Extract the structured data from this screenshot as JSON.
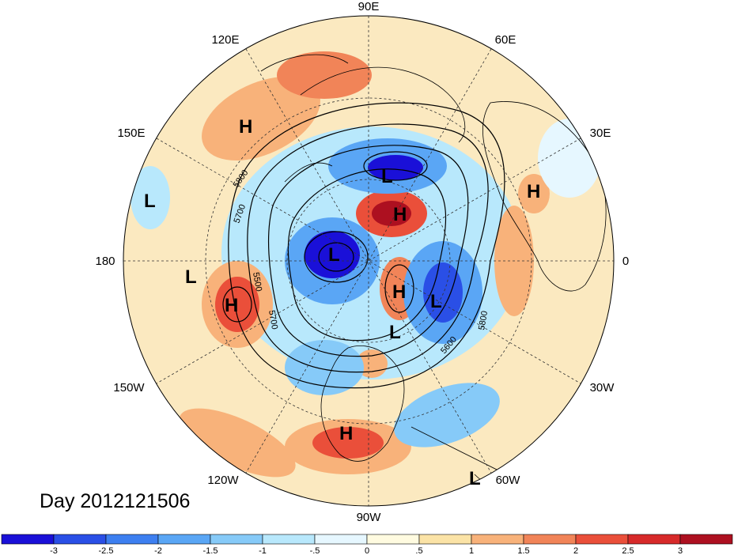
{
  "title": "Day 2012121506",
  "colors": {
    "land_outline": "#000000",
    "graticule": "#333333",
    "background": "#ffffff"
  },
  "longitude_labels": [
    {
      "text": "90E",
      "name": "lon-label-90e"
    },
    {
      "text": "60E",
      "name": "lon-label-60e"
    },
    {
      "text": "30E",
      "name": "lon-label-30e"
    },
    {
      "text": "0",
      "name": "lon-label-0"
    },
    {
      "text": "30W",
      "name": "lon-label-30w"
    },
    {
      "text": "60W",
      "name": "lon-label-60w"
    },
    {
      "text": "90W",
      "name": "lon-label-90w"
    },
    {
      "text": "120W",
      "name": "lon-label-120w"
    },
    {
      "text": "150W",
      "name": "lon-label-150w"
    },
    {
      "text": "180",
      "name": "lon-label-180"
    },
    {
      "text": "150E",
      "name": "lon-label-150e"
    },
    {
      "text": "120E",
      "name": "lon-label-120e"
    }
  ],
  "contour_labels": [
    "5800",
    "5700",
    "5500",
    "5700",
    "5800",
    "5600"
  ],
  "centers": [
    {
      "type": "H",
      "name": "high-center-east-asia"
    },
    {
      "type": "L",
      "name": "low-center-north-pacific"
    },
    {
      "type": "L",
      "name": "low-center-dateline"
    },
    {
      "type": "H",
      "name": "high-center-gulf-of-alaska"
    },
    {
      "type": "L",
      "name": "low-center-siberia"
    },
    {
      "type": "H",
      "name": "high-center-arctic"
    },
    {
      "type": "L",
      "name": "low-center-arctic-canada"
    },
    {
      "type": "H",
      "name": "high-center-greenland-west"
    },
    {
      "type": "L",
      "name": "low-center-north-atlantic"
    },
    {
      "type": "L",
      "name": "low-center-hudson"
    },
    {
      "type": "H",
      "name": "high-center-europe"
    },
    {
      "type": "H",
      "name": "high-center-mexico"
    },
    {
      "type": "L",
      "name": "low-center-south-america"
    }
  ],
  "colorbar": {
    "colors": [
      "#1a10d8",
      "#2a4fe6",
      "#3d7ff0",
      "#5aa6f5",
      "#86caf8",
      "#b8e8fc",
      "#e6f7ff",
      "#fffbe0",
      "#fbe3a6",
      "#f8b27a",
      "#f18458",
      "#ea4f3a",
      "#d72a2a",
      "#ad1020"
    ],
    "tick_labels": [
      "-3",
      "-2.5",
      "-2",
      "-1.5",
      "-1",
      "-.5",
      "0",
      ".5",
      "1",
      "1.5",
      "2",
      "2.5",
      "3"
    ]
  }
}
